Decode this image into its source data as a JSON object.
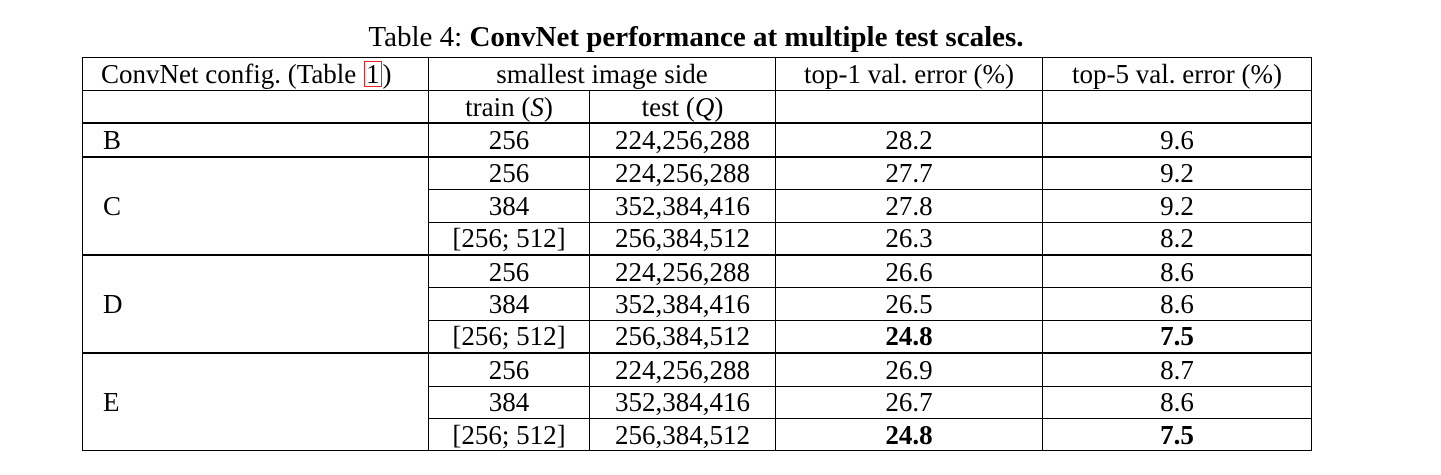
{
  "caption": {
    "prefix": "Table 4: ",
    "title": "ConvNet performance at multiple test scales."
  },
  "table": {
    "headers": {
      "config_text": "ConvNet config. (Table ",
      "config_ref": "1",
      "config_close": ")",
      "smallest_side": "smallest image side",
      "train_text": "train (",
      "train_sym": "S",
      "test_text": "test (",
      "test_sym": "Q",
      "close_paren": ")",
      "top1": "top-1 val. error (%)",
      "top5": "top-5 val. error (%)"
    },
    "groups": [
      {
        "config": "B",
        "rows": [
          {
            "train": "256",
            "test": "224,256,288",
            "top1": "28.2",
            "top5": "9.6"
          }
        ]
      },
      {
        "config": "C",
        "rows": [
          {
            "train": "256",
            "test": "224,256,288",
            "top1": "27.7",
            "top5": "9.2"
          },
          {
            "train": "384",
            "test": "352,384,416",
            "top1": "27.8",
            "top5": "9.2"
          },
          {
            "train": "[256; 512]",
            "test": "256,384,512",
            "top1": "26.3",
            "top5": "8.2"
          }
        ]
      },
      {
        "config": "D",
        "rows": [
          {
            "train": "256",
            "test": "224,256,288",
            "top1": "26.6",
            "top5": "8.6"
          },
          {
            "train": "384",
            "test": "352,384,416",
            "top1": "26.5",
            "top5": "8.6"
          },
          {
            "train": "[256; 512]",
            "test": "256,384,512",
            "top1": "24.8",
            "top5": "7.5",
            "bold": true
          }
        ]
      },
      {
        "config": "E",
        "rows": [
          {
            "train": "256",
            "test": "224,256,288",
            "top1": "26.9",
            "top5": "8.7"
          },
          {
            "train": "384",
            "test": "352,384,416",
            "top1": "26.7",
            "top5": "8.6"
          },
          {
            "train": "[256; 512]",
            "test": "256,384,512",
            "top1": "24.8",
            "top5": "7.5",
            "bold": true
          }
        ]
      }
    ]
  },
  "colors": {
    "text": "#000000",
    "reference_box": "#e8262a",
    "background": "#ffffff"
  }
}
